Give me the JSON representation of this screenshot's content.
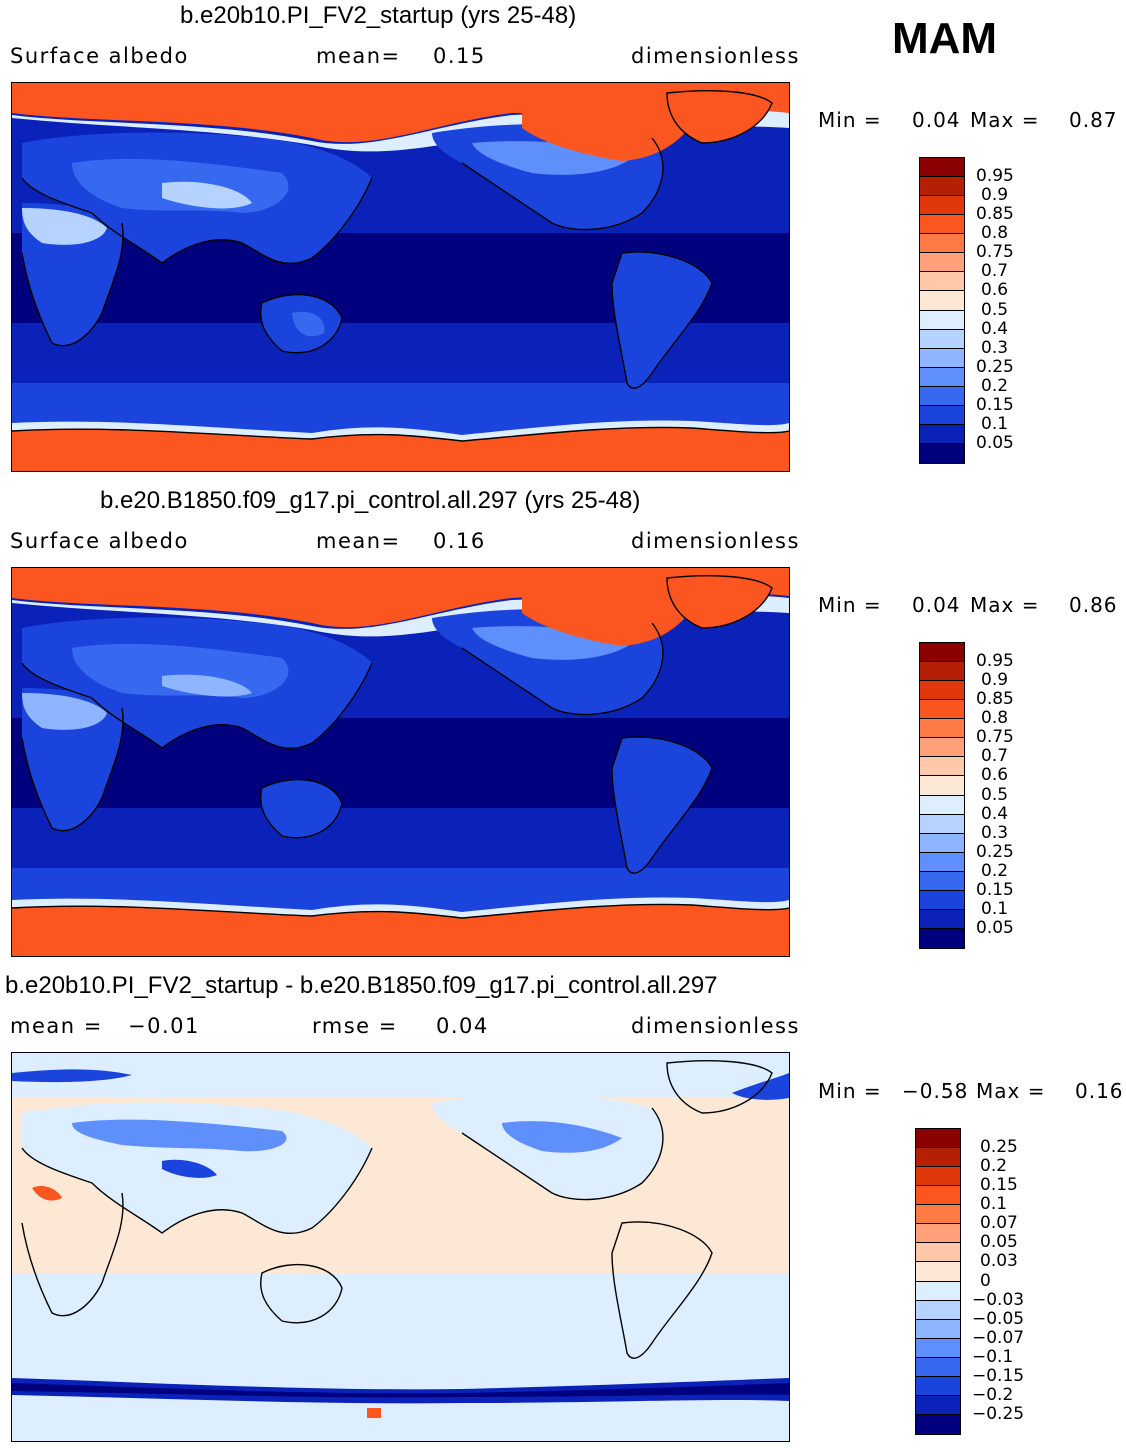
{
  "season": "MAM",
  "panels": [
    {
      "title": "b.e20b10.PI_FV2_startup (yrs 25-48)",
      "left_label": "Surface albedo",
      "mid_label": "mean=",
      "mid_value": "0.15",
      "units": "dimensionless",
      "min_label": "Min =",
      "min_value": "0.04",
      "max_label": "Max =",
      "max_value": "0.87",
      "kind": "abs"
    },
    {
      "title": "b.e20.B1850.f09_g17.pi_control.all.297 (yrs 25-48)",
      "left_label": "Surface albedo",
      "mid_label": "mean=",
      "mid_value": "0.16",
      "units": "dimensionless",
      "min_label": "Min =",
      "min_value": "0.04",
      "max_label": "Max =",
      "max_value": "0.86",
      "kind": "abs"
    },
    {
      "title": "b.e20b10.PI_FV2_startup - b.e20.B1850.f09_g17.pi_control.all.297",
      "left_label": "mean =",
      "left_value": "−0.01",
      "mid_label": "rmse =",
      "mid_value": "0.04",
      "units": "dimensionless",
      "min_label": "Min =",
      "min_value": "−0.58",
      "max_label": "Max =",
      "max_value": "0.16",
      "kind": "diff"
    }
  ],
  "colorbars": {
    "abs": {
      "labels": [
        "0.95",
        "0.9",
        "0.85",
        "0.8",
        "0.75",
        "0.7",
        "0.6",
        "0.5",
        "0.4",
        "0.3",
        "0.25",
        "0.2",
        "0.15",
        "0.1",
        "0.05"
      ],
      "colors": [
        "#8b0000",
        "#b51f05",
        "#e0380b",
        "#fb5520",
        "#ff7a45",
        "#ffa07a",
        "#ffc8a8",
        "#fde8d6",
        "#dceeff",
        "#b6d3ff",
        "#8eb5ff",
        "#5f8ffb",
        "#3669f0",
        "#1a44dc",
        "#0a22b8",
        "#00007f"
      ]
    },
    "diff": {
      "labels": [
        "0.25",
        "0.2",
        "0.15",
        "0.1",
        "0.07",
        "0.05",
        "0.03",
        "0",
        "−0.03",
        "−0.05",
        "−0.07",
        "−0.1",
        "−0.15",
        "−0.2",
        "−0.25"
      ],
      "colors": [
        "#8b0000",
        "#b51f05",
        "#e0380b",
        "#fb5520",
        "#ff7a45",
        "#ffa07a",
        "#ffc8a8",
        "#fde8d6",
        "#dceeff",
        "#b6d3ff",
        "#8eb5ff",
        "#5f8ffb",
        "#3669f0",
        "#1a44dc",
        "#0a22b8",
        "#00007f"
      ]
    }
  }
}
